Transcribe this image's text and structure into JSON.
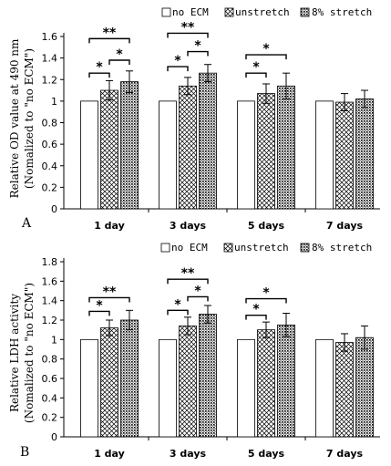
{
  "colors": {
    "bar_stroke": "#000000",
    "no_ecm_fill": "#ffffff"
  },
  "chart_data": [
    {
      "type": "bar",
      "panel_label": "A",
      "ylabel_line1": "Relative OD value at 490 nm",
      "ylabel_line2": "(Nomalized to \"no ECM\")",
      "categories": [
        "1 day",
        "3 days",
        "5 days",
        "7 days"
      ],
      "ylim": [
        0,
        1.6
      ],
      "yticks": [
        "0",
        "0.2",
        "0.4",
        "0.6",
        "0.8",
        "1",
        "1.2",
        "1.4",
        "1.6"
      ],
      "legend": [
        "no ECM",
        "unstretch",
        "8% stretch"
      ],
      "legend_placement": "top-right",
      "series": [
        {
          "name": "no ECM",
          "values": [
            1.0,
            1.0,
            1.0,
            1.0
          ],
          "errors": [
            0,
            0,
            0,
            0
          ],
          "pattern": "none"
        },
        {
          "name": "unstretch",
          "values": [
            1.1,
            1.14,
            1.07,
            0.99
          ],
          "errors": [
            0.09,
            0.08,
            0.09,
            0.08
          ],
          "pattern": "cross"
        },
        {
          "name": "8% stretch",
          "values": [
            1.18,
            1.26,
            1.14,
            1.02
          ],
          "errors": [
            0.1,
            0.08,
            0.12,
            0.08
          ],
          "pattern": "dots"
        }
      ],
      "annotations": [
        {
          "category": 0,
          "from": 0,
          "to": 1,
          "y": 1.26,
          "label": "*"
        },
        {
          "category": 0,
          "from": 1,
          "to": 2,
          "y": 1.38,
          "label": "*"
        },
        {
          "category": 0,
          "from": 0,
          "to": 2,
          "y": 1.58,
          "label": "**"
        },
        {
          "category": 1,
          "from": 0,
          "to": 1,
          "y": 1.32,
          "label": "*"
        },
        {
          "category": 1,
          "from": 1,
          "to": 2,
          "y": 1.46,
          "label": "*"
        },
        {
          "category": 1,
          "from": 0,
          "to": 2,
          "y": 1.63,
          "label": "**"
        },
        {
          "category": 2,
          "from": 0,
          "to": 1,
          "y": 1.26,
          "label": "*"
        },
        {
          "category": 2,
          "from": 0,
          "to": 2,
          "y": 1.43,
          "label": "*"
        }
      ]
    },
    {
      "type": "bar",
      "panel_label": "B",
      "ylabel_line1": "Relative LDH activity",
      "ylabel_line2": "(Nomalized to \"no ECM\")",
      "categories": [
        "1 day",
        "3 days",
        "5 days",
        "7 days"
      ],
      "ylim": [
        0,
        1.8
      ],
      "yticks": [
        "0",
        "0.2",
        "0.4",
        "0.6",
        "0.8",
        "1",
        "1.2",
        "1.4",
        "1.6",
        "1.8"
      ],
      "legend": [
        "no ECM",
        "unstretch",
        "8% stretch"
      ],
      "legend_placement": "top-right",
      "series": [
        {
          "name": "no ECM",
          "values": [
            1.0,
            1.0,
            1.0,
            1.0
          ],
          "errors": [
            0,
            0,
            0,
            0
          ],
          "pattern": "none"
        },
        {
          "name": "unstretch",
          "values": [
            1.12,
            1.14,
            1.1,
            0.97
          ],
          "errors": [
            0.08,
            0.09,
            0.08,
            0.09
          ],
          "pattern": "cross"
        },
        {
          "name": "8% stretch",
          "values": [
            1.2,
            1.26,
            1.15,
            1.02
          ],
          "errors": [
            0.1,
            0.09,
            0.12,
            0.12
          ],
          "pattern": "dots"
        }
      ],
      "annotations": [
        {
          "category": 0,
          "from": 0,
          "to": 1,
          "y": 1.29,
          "label": "*"
        },
        {
          "category": 0,
          "from": 0,
          "to": 2,
          "y": 1.43,
          "label": "**"
        },
        {
          "category": 1,
          "from": 0,
          "to": 1,
          "y": 1.3,
          "label": "*"
        },
        {
          "category": 1,
          "from": 1,
          "to": 2,
          "y": 1.44,
          "label": "*"
        },
        {
          "category": 1,
          "from": 0,
          "to": 2,
          "y": 1.62,
          "label": "**"
        },
        {
          "category": 2,
          "from": 0,
          "to": 1,
          "y": 1.25,
          "label": "*"
        },
        {
          "category": 2,
          "from": 0,
          "to": 2,
          "y": 1.42,
          "label": "*"
        }
      ]
    }
  ]
}
